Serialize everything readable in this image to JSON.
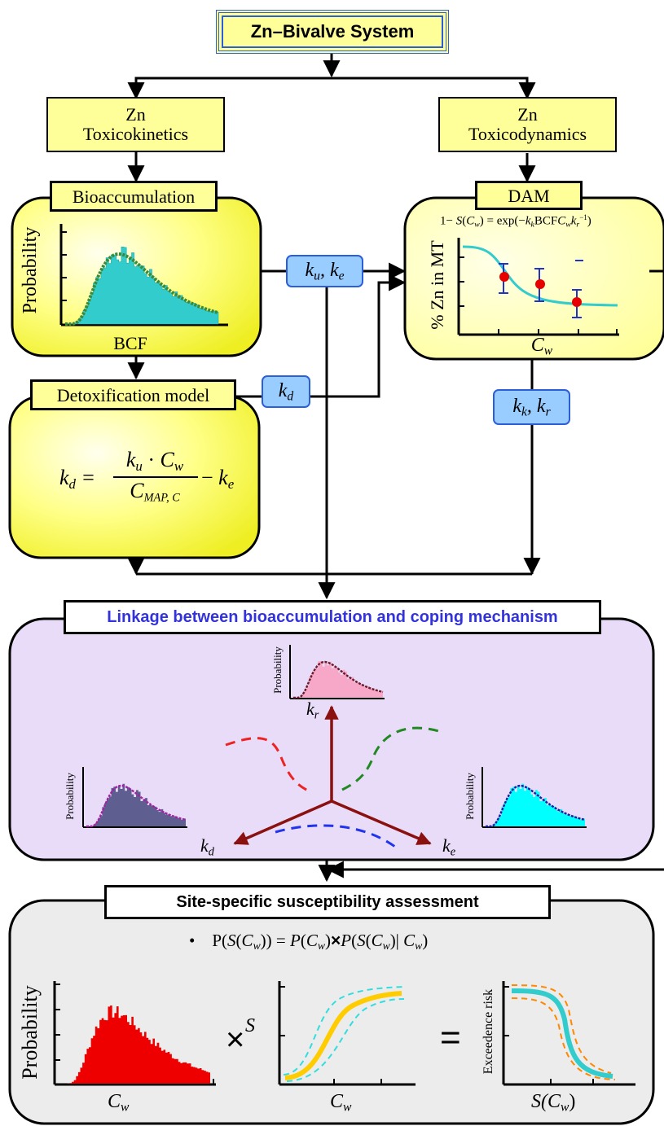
{
  "title": "Zn–Bivalve System",
  "toxicokinetics": {
    "line1": "Zn",
    "line2": "Toxicokinetics"
  },
  "toxicodynamics": {
    "line1": "Zn",
    "line2": "Toxicodynamics"
  },
  "bioaccumulation": {
    "label": "Bioaccumulation",
    "ylabel": "Probability",
    "xlabel": "BCF"
  },
  "dam": {
    "label": "DAM",
    "formula": "1 − S(Cw) = exp(−kk BCF Cw kr−1)",
    "ylabel": "% Zn in MT",
    "xlabel": "C",
    "xsub": "w"
  },
  "detox": {
    "label": "Detoxification model"
  },
  "params": {
    "ku_ke": {
      "a": "k",
      "asub": "u",
      "b": "k",
      "bsub": "e"
    },
    "kd": {
      "a": "k",
      "asub": "d"
    },
    "kk_kr": {
      "a": "k",
      "asub": "k",
      "b": "k",
      "bsub": "r"
    }
  },
  "linkage": {
    "title": "Linkage between bioaccumulation and coping mechanism",
    "ylabel": "Probability",
    "kr": {
      "a": "k",
      "sub": "r"
    },
    "kd": {
      "a": "k",
      "sub": "d"
    },
    "ke": {
      "a": "k",
      "sub": "e"
    }
  },
  "susceptibility": {
    "title": "Site-specific susceptibility assessment",
    "bullet": "•",
    "equation": "P(S(Cw)) = P(Cw)×P(S(Cw)| Cw)",
    "ylabel_left": "Probability",
    "xlabel_left": "C",
    "xsub_left": "w",
    "times": "×",
    "ylabel_mid": "S",
    "xlabel_mid": "C",
    "xsub_mid": "w",
    "equals": "=",
    "ylabel_right": "Exceedence risk",
    "xlabel_right": "S(C",
    "xsub_right": "w",
    "xlabel_right_close": ")"
  },
  "colors": {
    "yellow_box": "#ffff99",
    "yellow_panel": "#ffff66",
    "blue_param": "#99ccff",
    "lavender": "#e8dcf8",
    "gray_panel": "#ececec",
    "teal": "#33cccc",
    "red": "#e60000",
    "link_title": "#3333dd"
  }
}
